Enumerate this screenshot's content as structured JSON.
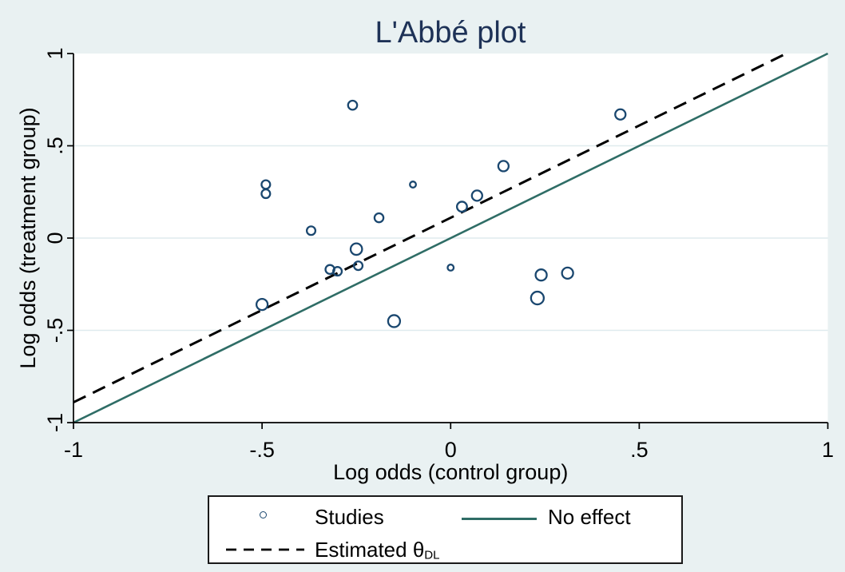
{
  "title": "L'Abbé plot",
  "colors": {
    "page_background": "#e9f1f2",
    "plot_background": "#ffffff",
    "grid": "#dfebee",
    "axis": "#000000",
    "marker": "#1a476f",
    "no_effect_line": "#2f6d66",
    "estimated_line": "#000000",
    "title_text": "#1e3257",
    "legend_border": "#1a1a1a"
  },
  "chart_data": {
    "type": "scatter",
    "title": "L'Abbé plot",
    "xlabel": "Log odds (control group)",
    "ylabel": "Log odds (treatment group)",
    "xlim": [
      -1,
      1
    ],
    "ylim": [
      -1,
      1
    ],
    "xtick_values": [
      -1,
      -0.5,
      0,
      0.5,
      1
    ],
    "xtick_labels": [
      "-1",
      "-.5",
      "0",
      ".5",
      "1"
    ],
    "ytick_values": [
      -1,
      -0.5,
      0,
      0.5,
      1
    ],
    "ytick_labels": [
      "-1",
      "-.5",
      "0",
      ".5",
      "1"
    ],
    "gridlines_y": [
      0.5,
      0,
      -0.5
    ],
    "grid": "horizontal-only",
    "legend_position": "bottom",
    "series": [
      {
        "id": "studies",
        "name": "Studies",
        "type": "scatter",
        "marker": "hollow-circle",
        "note": "points are [x, y, marker_radius_px] — marker size proportional to study weight",
        "points": [
          [
            -0.26,
            0.72,
            5.7
          ],
          [
            -0.49,
            0.29,
            5.4
          ],
          [
            -0.49,
            0.24,
            5.4
          ],
          [
            -0.1,
            0.29,
            3.8
          ],
          [
            0.07,
            0.23,
            6.5
          ],
          [
            0.03,
            0.17,
            6.3
          ],
          [
            -0.19,
            0.11,
            5.6
          ],
          [
            -0.37,
            0.04,
            5.4
          ],
          [
            -0.25,
            -0.06,
            7.2
          ],
          [
            -0.32,
            -0.17,
            5.6
          ],
          [
            -0.3,
            -0.18,
            5.4
          ],
          [
            -0.245,
            -0.15,
            5.4
          ],
          [
            0.0,
            -0.16,
            3.8
          ],
          [
            0.45,
            0.67,
            6.5
          ],
          [
            0.14,
            0.39,
            6.5
          ],
          [
            0.24,
            -0.2,
            7.0
          ],
          [
            0.31,
            -0.19,
            7.0
          ],
          [
            0.23,
            -0.325,
            8.0
          ],
          [
            -0.5,
            -0.36,
            7.0
          ],
          [
            -0.15,
            -0.45,
            7.5
          ]
        ]
      },
      {
        "id": "estimated-theta-line",
        "name": "Estimated θDL",
        "type": "line",
        "slope": 1,
        "intercept": 0.11,
        "style": "dashed",
        "dash": "17 10",
        "width": 3,
        "color": "#000000"
      },
      {
        "id": "no-effect-line",
        "name": "No effect",
        "type": "line",
        "slope": 1,
        "intercept": 0,
        "style": "solid",
        "width": 2.6,
        "color": "#2f6d66"
      }
    ]
  },
  "legend": {
    "studies_label": "Studies",
    "no_effect_label": "No effect",
    "estimated_label": "Estimated θ",
    "estimated_subscript": "DL"
  }
}
